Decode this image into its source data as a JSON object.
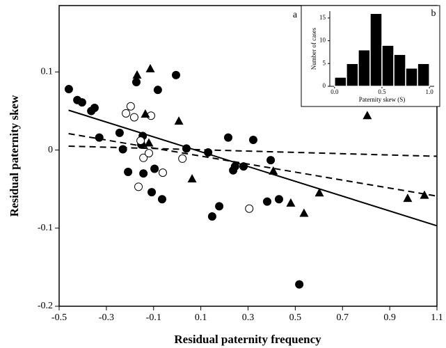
{
  "chart_data": [
    {
      "type": "scatter",
      "label": "a",
      "x_label": "Residual paternity frequency",
      "y_label": "Residual paternity skew",
      "xlim": [
        -0.5,
        1.1
      ],
      "ylim": [
        -0.2,
        0.185
      ],
      "xticks": [
        -0.5,
        -0.3,
        -0.1,
        0.1,
        0.3,
        0.5,
        0.7,
        0.9,
        1.1
      ],
      "yticks": [
        -0.2,
        -0.1,
        0,
        0.1
      ],
      "series": [
        {
          "marker": "filled-circle",
          "color": "#000000",
          "x": [
            -0.459,
            -0.423,
            -0.403,
            -0.364,
            -0.35,
            -0.33,
            -0.244,
            -0.23,
            -0.208,
            -0.173,
            -0.146,
            -0.143,
            -0.152,
            -0.108,
            -0.096,
            -0.082,
            -0.064,
            -0.005,
            0.039,
            0.131,
            0.148,
            0.178,
            0.216,
            0.237,
            0.245,
            0.281,
            0.322,
            0.396,
            0.381,
            0.431,
            0.517
          ],
          "values": [
            0.078,
            0.064,
            0.061,
            0.05,
            0.054,
            0.016,
            0.022,
            0.001,
            -0.028,
            0.087,
            0.018,
            -0.03,
            0.007,
            -0.054,
            -0.024,
            0.077,
            -0.063,
            0.096,
            0.002,
            -0.003,
            -0.085,
            -0.072,
            0.016,
            -0.026,
            -0.021,
            -0.021,
            0.013,
            -0.013,
            -0.066,
            -0.063,
            -0.172
          ]
        },
        {
          "marker": "open-circle",
          "color": "#000000",
          "x": [
            -0.217,
            -0.197,
            -0.182,
            -0.155,
            -0.143,
            -0.12,
            -0.111,
            -0.164,
            -0.061,
            0.022,
            0.305
          ],
          "values": [
            0.047,
            0.056,
            0.042,
            0.012,
            -0.01,
            -0.004,
            0.044,
            -0.047,
            -0.029,
            -0.011,
            -0.075
          ]
        },
        {
          "marker": "triangle",
          "color": "#000000",
          "x": [
            -0.17,
            -0.114,
            -0.135,
            -0.12,
            0.007,
            0.063,
            0.407,
            0.481,
            0.537,
            0.602,
            0.805,
            0.976,
            1.047
          ],
          "values": [
            0.096,
            0.104,
            0.046,
            0.009,
            0.037,
            -0.037,
            -0.027,
            -0.068,
            -0.081,
            -0.055,
            0.044,
            -0.062,
            -0.058
          ]
        }
      ],
      "lines": [
        {
          "style": "solid",
          "x": [
            -0.46,
            1.1
          ],
          "values": [
            0.051,
            -0.097
          ]
        },
        {
          "style": "dashed",
          "x": [
            -0.46,
            1.1
          ],
          "values": [
            0.021,
            -0.059
          ]
        },
        {
          "style": "dashed",
          "x": [
            -0.46,
            1.1
          ],
          "values": [
            0.005,
            -0.008
          ]
        }
      ]
    },
    {
      "type": "histogram",
      "label": "b",
      "x_label": "Paternity skew (S)",
      "y_label": "Number of cases",
      "bins": [
        0,
        0.125,
        0.25,
        0.375,
        0.5,
        0.625,
        0.75,
        0.875,
        1.0
      ],
      "values": [
        2,
        5,
        8,
        16,
        9,
        7,
        4,
        5
      ],
      "color": "#000000",
      "xlim": [
        -0.05,
        1.05
      ],
      "ylim": [
        0,
        16.5
      ],
      "xticks": [
        {
          "value": 0,
          "label": "0.0"
        },
        0.5,
        {
          "value": 1,
          "label": "1.0"
        }
      ],
      "yticks": [
        0,
        5,
        10,
        15
      ]
    }
  ]
}
